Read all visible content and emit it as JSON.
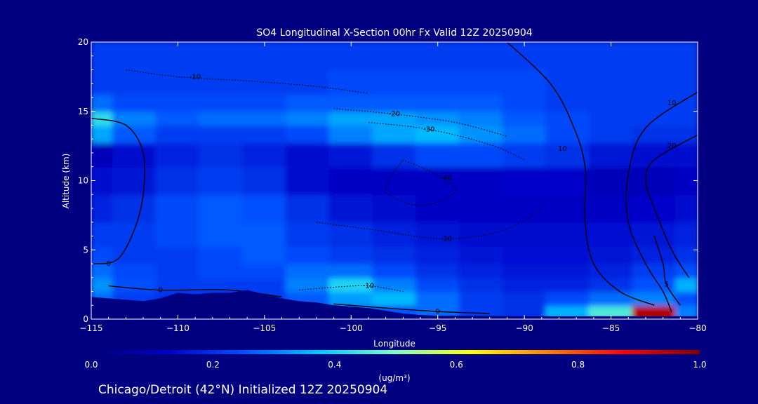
{
  "chart_data": {
    "type": "heatmap",
    "title": "SO4 Longitudinal X-Section 00hr  Fx Valid 12Z 20250904",
    "xlabel": "Longitude",
    "ylabel": "Altitude (km)",
    "xlim": [
      -115,
      -80
    ],
    "ylim": [
      0,
      20
    ],
    "x_ticks": [
      -115,
      -110,
      -105,
      -100,
      -95,
      -90,
      -85,
      -80
    ],
    "x_tick_labels": [
      "−115",
      "−110",
      "−105",
      "−100",
      "−95",
      "−90",
      "−85",
      "−80"
    ],
    "y_ticks": [
      0,
      5,
      10,
      15,
      20
    ],
    "y_tick_labels": [
      "0",
      "5",
      "10",
      "15",
      "20"
    ],
    "colorbar": {
      "range": [
        0.0,
        1.0
      ],
      "ticks": [
        "0.0",
        "0.2",
        "0.4",
        "0.6",
        "0.8",
        "1.0"
      ],
      "units_label": "(ug/m³)",
      "colors": [
        "#000078",
        "#0000c8",
        "#0050ff",
        "#00c8ff",
        "#80ffc0",
        "#ffff00",
        "#ff8000",
        "#ff0000",
        "#800000"
      ]
    },
    "field_x": [
      -115,
      -112.5,
      -110,
      -107.5,
      -105,
      -102.5,
      -100,
      -97.5,
      -95,
      -92.5,
      -90,
      -87.5,
      -85,
      -82.5,
      -80
    ],
    "field_y": [
      0.5,
      1.5,
      2.5,
      3.5,
      4.5,
      6,
      8,
      10,
      12,
      13.5,
      14.5,
      15.5,
      17,
      19
    ],
    "field_values": [
      [
        0.3,
        0.22,
        0.2,
        0.2,
        0.2,
        0.22,
        0.25,
        0.25,
        0.28,
        0.22,
        0.2,
        0.35,
        0.45,
        0.95,
        0.3
      ],
      [
        0.28,
        0.22,
        0.2,
        0.2,
        0.22,
        0.26,
        0.33,
        0.36,
        0.28,
        0.22,
        0.2,
        0.24,
        0.28,
        0.3,
        0.25
      ],
      [
        0.32,
        0.25,
        0.22,
        0.22,
        0.22,
        0.3,
        0.4,
        0.3,
        0.24,
        0.2,
        0.18,
        0.18,
        0.2,
        0.25,
        0.35
      ],
      [
        0.28,
        0.24,
        0.22,
        0.24,
        0.24,
        0.28,
        0.28,
        0.24,
        0.2,
        0.18,
        0.16,
        0.16,
        0.18,
        0.22,
        0.25
      ],
      [
        0.24,
        0.22,
        0.22,
        0.24,
        0.26,
        0.24,
        0.22,
        0.2,
        0.18,
        0.16,
        0.15,
        0.15,
        0.16,
        0.18,
        0.2
      ],
      [
        0.22,
        0.22,
        0.24,
        0.26,
        0.26,
        0.22,
        0.2,
        0.18,
        0.16,
        0.14,
        0.14,
        0.14,
        0.15,
        0.16,
        0.18
      ],
      [
        0.18,
        0.2,
        0.24,
        0.26,
        0.25,
        0.2,
        0.16,
        0.14,
        0.12,
        0.12,
        0.12,
        0.12,
        0.12,
        0.13,
        0.14
      ],
      [
        0.14,
        0.16,
        0.2,
        0.22,
        0.2,
        0.14,
        0.12,
        0.12,
        0.12,
        0.12,
        0.13,
        0.13,
        0.1,
        0.1,
        0.12
      ],
      [
        0.1,
        0.14,
        0.18,
        0.2,
        0.18,
        0.14,
        0.16,
        0.2,
        0.24,
        0.24,
        0.22,
        0.2,
        0.16,
        0.14,
        0.14
      ],
      [
        0.34,
        0.26,
        0.22,
        0.22,
        0.22,
        0.24,
        0.3,
        0.34,
        0.36,
        0.32,
        0.28,
        0.24,
        0.22,
        0.2,
        0.2
      ],
      [
        0.42,
        0.3,
        0.26,
        0.28,
        0.28,
        0.3,
        0.34,
        0.34,
        0.32,
        0.3,
        0.26,
        0.24,
        0.22,
        0.22,
        0.22
      ],
      [
        0.28,
        0.24,
        0.24,
        0.24,
        0.24,
        0.26,
        0.26,
        0.26,
        0.26,
        0.26,
        0.24,
        0.22,
        0.22,
        0.22,
        0.22
      ],
      [
        0.22,
        0.22,
        0.22,
        0.22,
        0.22,
        0.22,
        0.24,
        0.24,
        0.24,
        0.24,
        0.24,
        0.22,
        0.22,
        0.22,
        0.22
      ],
      [
        0.22,
        0.22,
        0.22,
        0.22,
        0.22,
        0.22,
        0.22,
        0.22,
        0.22,
        0.22,
        0.22,
        0.22,
        0.22,
        0.22,
        0.22
      ]
    ],
    "terrain": {
      "x": [
        -115,
        -114,
        -113,
        -112,
        -111,
        -110,
        -109,
        -108,
        -107,
        -106,
        -105,
        -104,
        -103,
        -102,
        -101,
        -100,
        -99,
        -98,
        -97,
        -96,
        -95,
        -90,
        -85,
        -80
      ],
      "y": [
        1.6,
        1.5,
        1.4,
        1.3,
        1.5,
        1.9,
        1.8,
        1.9,
        1.9,
        2.1,
        1.8,
        1.5,
        1.3,
        1.2,
        1.0,
        0.9,
        0.8,
        0.6,
        0.4,
        0.3,
        0.25,
        0.2,
        0.2,
        0.2
      ]
    },
    "contours": [
      {
        "label": "0",
        "style": "solid",
        "label_at": [
          -114,
          4.0
        ],
        "points": [
          [
            -115,
            4.0
          ],
          [
            -113.5,
            4.3
          ],
          [
            -112.5,
            6.5
          ],
          [
            -112,
            9
          ],
          [
            -112,
            12
          ],
          [
            -113,
            14
          ],
          [
            -115,
            14.5
          ]
        ]
      },
      {
        "label": "-10",
        "style": "dotted",
        "label_at": [
          -109,
          17.5
        ],
        "points": [
          [
            -113,
            18
          ],
          [
            -110,
            17.5
          ],
          [
            -106,
            17.2
          ],
          [
            -102,
            16.8
          ],
          [
            -99,
            16.3
          ]
        ]
      },
      {
        "label": "-20",
        "style": "dotted",
        "label_at": [
          -97.5,
          14.8
        ],
        "points": [
          [
            -101,
            15.2
          ],
          [
            -97.5,
            14.8
          ],
          [
            -94,
            14.2
          ],
          [
            -91,
            13.2
          ]
        ]
      },
      {
        "label": "-30",
        "style": "dotted",
        "label_at": [
          -95.5,
          13.7
        ],
        "points": [
          [
            -99,
            14.2
          ],
          [
            -95.5,
            13.7
          ],
          [
            -92,
            12.6
          ],
          [
            -90,
            11.5
          ]
        ]
      },
      {
        "label": "-40",
        "style": "dotted",
        "label_at": [
          -94.5,
          10.2
        ],
        "points": [
          [
            -97,
            11.5
          ],
          [
            -95,
            10.4
          ],
          [
            -94,
            9.2
          ],
          [
            -96,
            8.2
          ],
          [
            -98,
            9.3
          ],
          [
            -97,
            11.5
          ]
        ]
      },
      {
        "label": "-20",
        "style": "dotted",
        "label_at": [
          -94.5,
          5.8
        ],
        "points": [
          [
            -102,
            7
          ],
          [
            -99,
            6.5
          ],
          [
            -94.5,
            5.8
          ],
          [
            -91,
            6.5
          ],
          [
            -89,
            8
          ]
        ]
      },
      {
        "label": "-10",
        "style": "dotted",
        "label_at": [
          -99,
          2.4
        ],
        "points": [
          [
            -103,
            2.1
          ],
          [
            -101,
            2.3
          ],
          [
            -99,
            2.4
          ],
          [
            -97,
            2.0
          ]
        ]
      },
      {
        "label": "0",
        "style": "solid",
        "label_at": [
          -111,
          2.1
        ],
        "points": [
          [
            -114,
            2.4
          ],
          [
            -111,
            2.1
          ],
          [
            -107,
            2.1
          ],
          [
            -104,
            1.6
          ]
        ]
      },
      {
        "label": "0",
        "style": "solid",
        "label_at": [
          -95,
          0.55
        ],
        "points": [
          [
            -101,
            1.1
          ],
          [
            -98,
            0.8
          ],
          [
            -95,
            0.55
          ],
          [
            -92,
            0.4
          ]
        ]
      },
      {
        "label": "10",
        "style": "solid",
        "label_at": [
          -87.8,
          12.3
        ],
        "points": [
          [
            -91,
            20
          ],
          [
            -88.5,
            17
          ],
          [
            -87.2,
            14
          ],
          [
            -86.5,
            11
          ],
          [
            -86.5,
            7
          ],
          [
            -86,
            4
          ],
          [
            -84.5,
            2
          ],
          [
            -82.5,
            1
          ]
        ]
      },
      {
        "label": "10",
        "style": "solid",
        "label_at": [
          -81.5,
          15.6
        ],
        "points": [
          [
            -80,
            16.4
          ],
          [
            -83,
            13.8
          ],
          [
            -84,
            10.5
          ],
          [
            -84,
            7
          ],
          [
            -83,
            4
          ],
          [
            -82,
            2
          ],
          [
            -81.5,
            0.5
          ]
        ]
      },
      {
        "label": "20",
        "style": "solid",
        "label_at": [
          -81.5,
          12.5
        ],
        "points": [
          [
            -80,
            13.3
          ],
          [
            -82.5,
            11.5
          ],
          [
            -83,
            10
          ],
          [
            -82.5,
            8
          ],
          [
            -81.5,
            5
          ],
          [
            -80.5,
            3
          ]
        ]
      },
      {
        "label": "5",
        "style": "solid",
        "label_at": [
          -81.8,
          2.5
        ],
        "points": [
          [
            -82.5,
            6
          ],
          [
            -82,
            4
          ],
          [
            -81.8,
            2.5
          ],
          [
            -81,
            1
          ]
        ]
      }
    ]
  },
  "footer": {
    "location_text": "Chicago/Detroit (42°N) Initialized 12Z 20250904"
  }
}
